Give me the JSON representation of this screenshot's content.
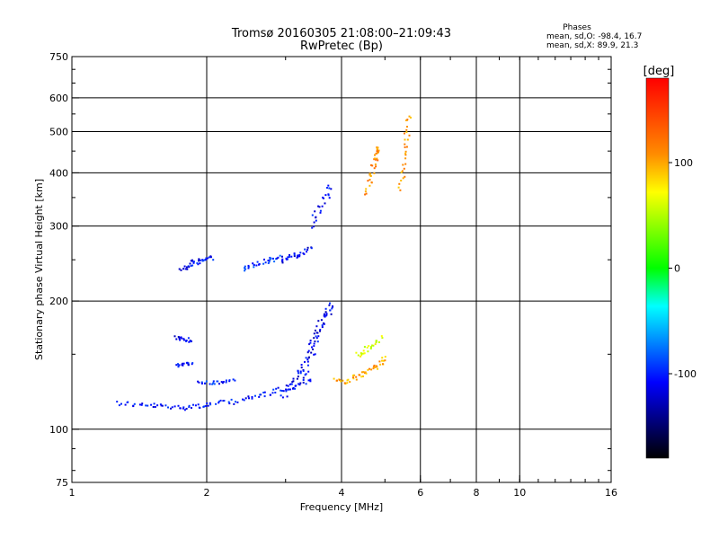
{
  "header": {
    "title_line1": "Tromsø 20160305 21:08:00–21:09:43",
    "title_line2": "RwPretec (Bp)"
  },
  "stats": {
    "heading": "Phases",
    "o_line": "mean, sd,O:  -98.4, 16.7",
    "x_line": "mean, sd,X:  89.9, 21.3"
  },
  "colorbar": {
    "label": "[deg]",
    "ticks": [
      "100",
      "0",
      "-100"
    ],
    "tick_values": [
      100,
      0,
      -100
    ],
    "range": [
      -180,
      180
    ]
  },
  "chart_data": {
    "type": "scatter",
    "xlabel": "Frequency [MHz]",
    "ylabel": "Stationary phase Virtual Height [km]",
    "xscale": "log",
    "yscale": "log",
    "xlim": [
      1,
      16
    ],
    "ylim": [
      75,
      750
    ],
    "xticks": [
      1,
      2,
      4,
      6,
      8,
      10,
      16
    ],
    "xtick_labels": [
      "1",
      "2",
      "4",
      "6",
      "8",
      "10",
      "16"
    ],
    "yticks": [
      75,
      100,
      200,
      300,
      400,
      500,
      600,
      750
    ],
    "ytick_labels": [
      "75",
      "100",
      "200",
      "300",
      "400",
      "500",
      "600",
      "750"
    ],
    "grid_x": [
      2,
      4,
      6,
      8,
      10
    ],
    "grid_y": [
      100,
      200,
      300,
      400,
      500,
      600
    ],
    "color_encoding": "phase in degrees",
    "traces": [
      {
        "x": [
          1.25,
          1.35,
          1.45,
          1.55,
          1.65,
          1.75,
          1.85,
          1.95,
          2.05,
          2.2,
          2.35,
          2.5,
          2.65,
          2.8,
          2.95,
          3.1,
          3.25,
          3.4
        ],
        "y": [
          116,
          115,
          114,
          114,
          113,
          113,
          114,
          114,
          115,
          116,
          117,
          119,
          121,
          123,
          125,
          127,
          129,
          132
        ],
        "phase": -105,
        "spread": 3
      },
      {
        "x": [
          3.2,
          3.3,
          3.4,
          3.5,
          3.6,
          3.7,
          3.8
        ],
        "y": [
          130,
          138,
          150,
          165,
          178,
          188,
          196
        ],
        "phase": -115,
        "spread": 4
      },
      {
        "x": [
          2.95,
          3.05,
          3.15,
          3.25,
          3.35,
          3.45,
          3.55,
          3.65,
          3.75
        ],
        "y": [
          120,
          125,
          132,
          140,
          150,
          160,
          172,
          185,
          200
        ],
        "phase": -110,
        "spread": 4
      },
      {
        "x": [
          1.7,
          1.75,
          1.8,
          1.85
        ],
        "y": [
          165,
          164,
          163,
          162
        ],
        "phase": -115,
        "spread": 2
      },
      {
        "x": [
          1.7,
          1.75,
          1.8,
          1.85
        ],
        "y": [
          142,
          142,
          143,
          144
        ],
        "phase": -110,
        "spread": 2
      },
      {
        "x": [
          1.9,
          2.0,
          2.1,
          2.2,
          2.3
        ],
        "y": [
          129,
          129,
          129,
          130,
          131
        ],
        "phase": -100,
        "spread": 2
      },
      {
        "x": [
          1.75,
          1.8,
          1.85,
          1.9,
          1.95,
          2.0,
          2.05
        ],
        "y": [
          239,
          242,
          246,
          248,
          250,
          252,
          254
        ],
        "phase": -105,
        "spread": 3
      },
      {
        "x": [
          2.4,
          2.5,
          2.6,
          2.7,
          2.8,
          2.9
        ],
        "y": [
          240,
          242,
          246,
          250,
          252,
          255
        ],
        "phase": -95,
        "spread": 3
      },
      {
        "x": [
          2.9,
          3.0,
          3.1,
          3.2,
          3.3,
          3.4
        ],
        "y": [
          250,
          253,
          256,
          258,
          262,
          270
        ],
        "phase": -110,
        "spread": 3
      },
      {
        "x": [
          3.4,
          3.5,
          3.6,
          3.7,
          3.8
        ],
        "y": [
          300,
          320,
          340,
          360,
          380
        ],
        "phase": -105,
        "spread": 4
      },
      {
        "x": [
          3.85,
          4.0,
          4.15,
          4.3,
          4.45,
          4.6,
          4.75,
          4.9,
          5.0
        ],
        "y": [
          132,
          130,
          131,
          133,
          135,
          138,
          141,
          144,
          148
        ],
        "phase": 100,
        "spread": 3
      },
      {
        "x": [
          4.55,
          4.6,
          4.65,
          4.7,
          4.75,
          4.8,
          4.85
        ],
        "y": [
          360,
          380,
          400,
          420,
          440,
          450,
          470
        ],
        "phase": 110,
        "spread": 3
      },
      {
        "x": [
          5.4,
          5.45,
          5.5,
          5.55,
          5.6,
          5.65
        ],
        "y": [
          370,
          400,
          440,
          480,
          520,
          560
        ],
        "phase": 105,
        "spread": 3
      },
      {
        "x": [
          4.3,
          4.45,
          4.6,
          4.75,
          4.9
        ],
        "y": [
          150,
          152,
          156,
          160,
          166
        ],
        "phase": 60,
        "spread": 3
      }
    ]
  }
}
